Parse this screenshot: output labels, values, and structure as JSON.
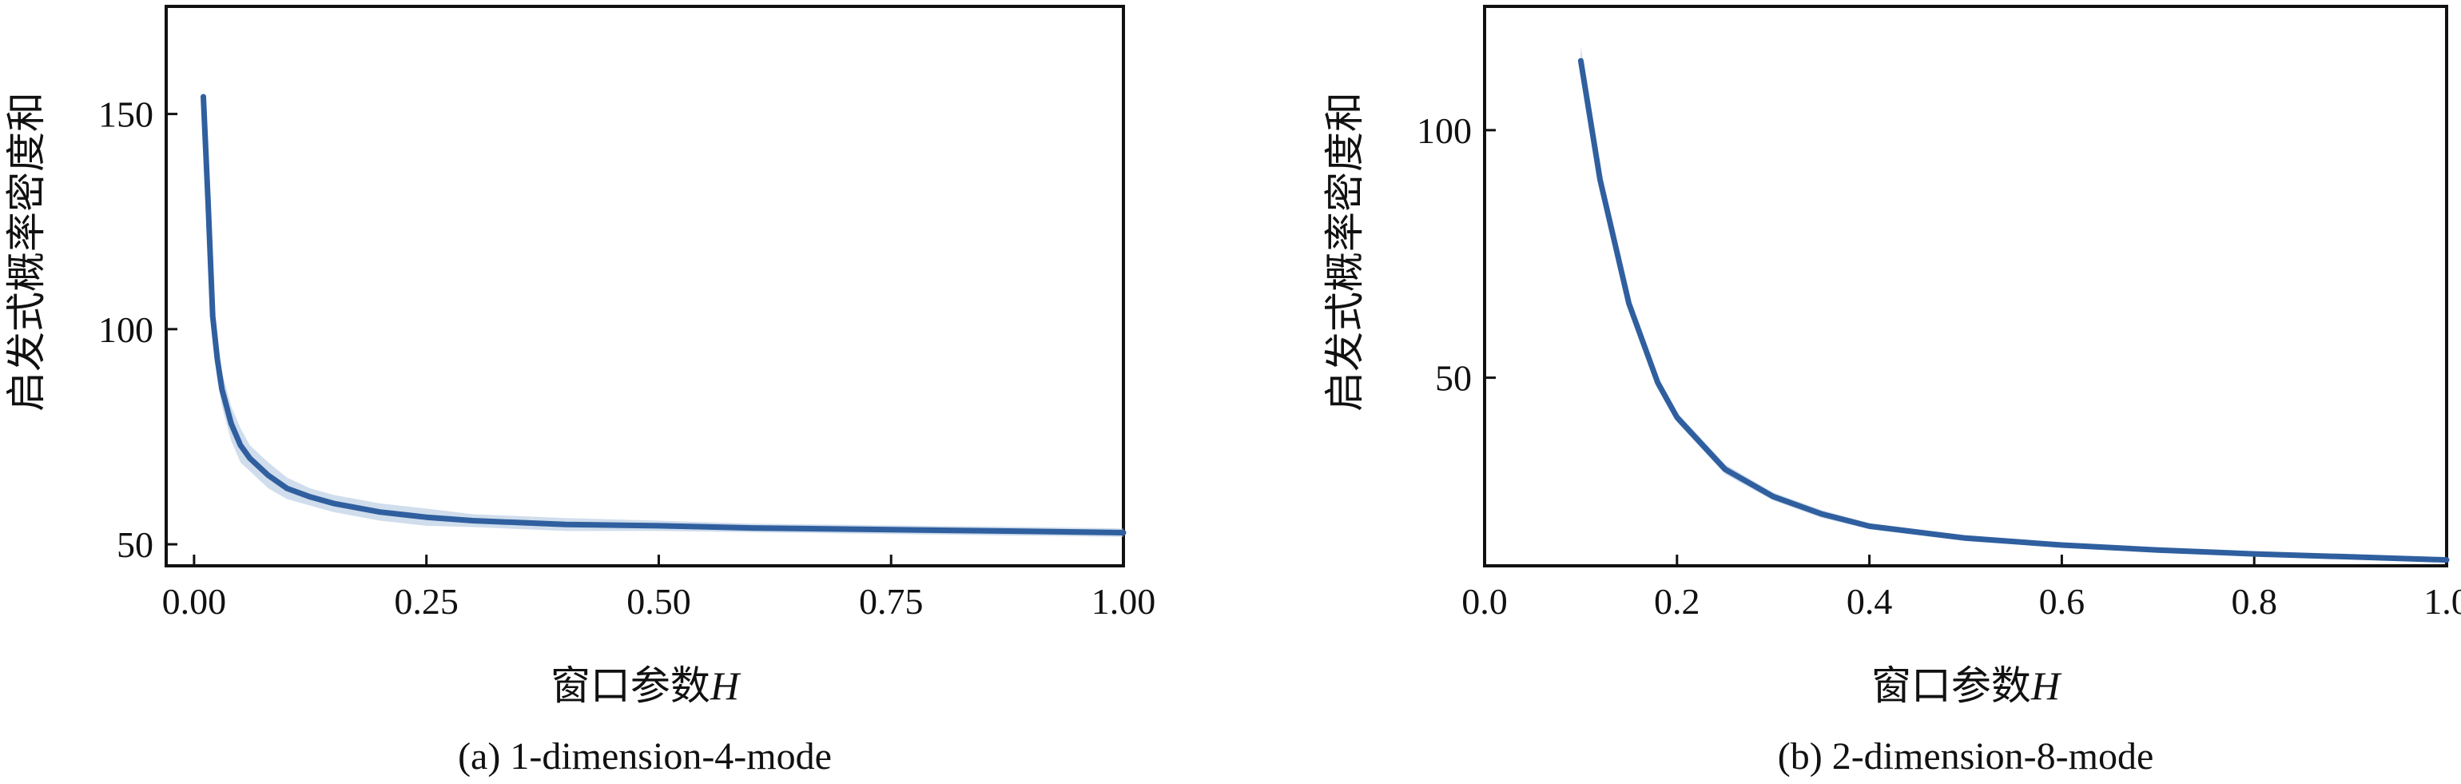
{
  "chart_data": [
    {
      "type": "line",
      "caption": "(a) 1-dimension-4-mode",
      "xlabel": "窗口参数",
      "xlabel_var": "H",
      "ylabel": "启发式概率密度和",
      "xlim": [
        -0.03,
        1.0
      ],
      "ylim": [
        45,
        175
      ],
      "xticks": [
        0.0,
        0.25,
        0.5,
        0.75,
        1.0
      ],
      "xtick_labels": [
        "0.00",
        "0.25",
        "0.50",
        "0.75",
        "1.00"
      ],
      "yticks": [
        50,
        100,
        150
      ],
      "ytick_labels": [
        "50",
        "100",
        "150"
      ],
      "series": [
        {
          "color": "#2f5f9f",
          "x": [
            0.01,
            0.015,
            0.02,
            0.025,
            0.03,
            0.04,
            0.05,
            0.06,
            0.08,
            0.1,
            0.125,
            0.15,
            0.2,
            0.25,
            0.3,
            0.4,
            0.5,
            0.6,
            0.75,
            0.9,
            1.0
          ],
          "y": [
            154,
            130,
            103,
            93,
            86,
            78,
            73,
            70,
            66,
            63,
            61,
            59.5,
            57.5,
            56.3,
            55.5,
            54.6,
            54.3,
            53.8,
            53.4,
            53.0,
            52.7
          ],
          "band": [
            2,
            5,
            6,
            5,
            4,
            4,
            4,
            3,
            3,
            2.5,
            2,
            2,
            2,
            2,
            1.5,
            1.5,
            1.2,
            1,
            1,
            1,
            1
          ]
        }
      ]
    },
    {
      "type": "line",
      "caption": "(b) 2-dimension-8-mode",
      "xlabel": "窗口参数",
      "xlabel_var": "H",
      "ylabel": "启发式概率密度和",
      "xlim": [
        0.0,
        1.0
      ],
      "ylim": [
        12,
        125
      ],
      "xticks": [
        0.0,
        0.2,
        0.4,
        0.6,
        0.8,
        1.0
      ],
      "xtick_labels": [
        "0.0",
        "0.2",
        "0.4",
        "0.6",
        "0.8",
        "1.0"
      ],
      "yticks": [
        50,
        100
      ],
      "ytick_labels": [
        "50",
        "100"
      ],
      "series": [
        {
          "color": "#2f5f9f",
          "x": [
            0.1,
            0.12,
            0.15,
            0.18,
            0.2,
            0.25,
            0.3,
            0.35,
            0.4,
            0.5,
            0.6,
            0.7,
            0.8,
            0.9,
            1.0
          ],
          "y": [
            114,
            90,
            65,
            49,
            42,
            31.5,
            26,
            22.5,
            20,
            17.6,
            16.2,
            15.2,
            14.4,
            13.8,
            13.2
          ],
          "band": [
            3,
            2,
            1.5,
            1.2,
            1,
            1,
            0.8,
            0.8,
            0.6,
            0.6,
            0.5,
            0.5,
            0.5,
            0.5,
            0.5
          ]
        }
      ]
    }
  ]
}
